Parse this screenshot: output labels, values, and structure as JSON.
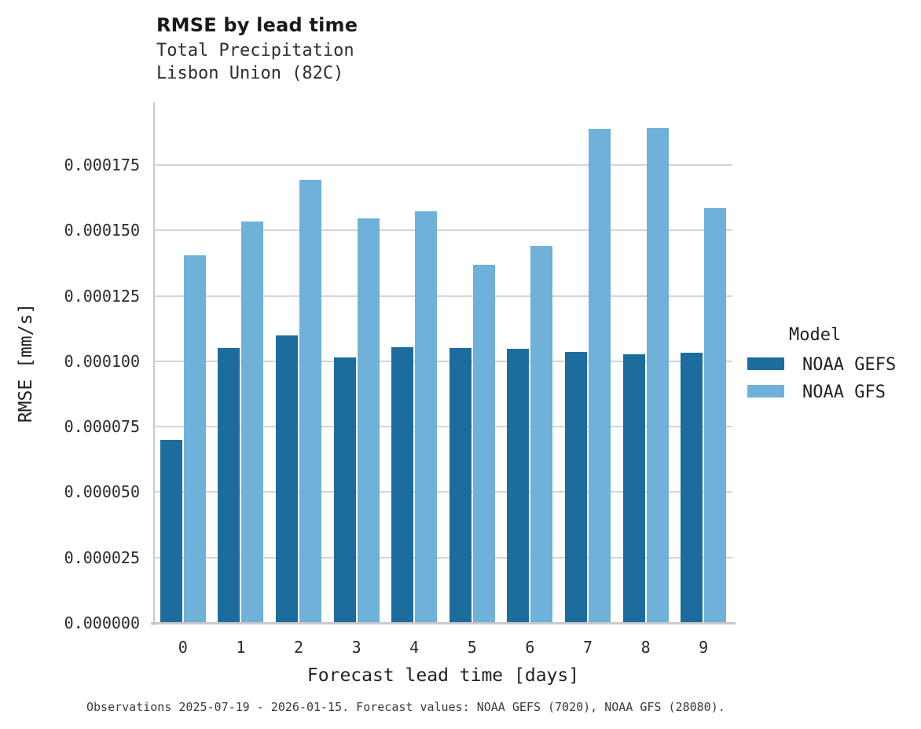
{
  "header": {
    "title": "RMSE by lead time",
    "subtitle_line1": "Total Precipitation",
    "subtitle_line2": "Lisbon Union (82C)"
  },
  "legend": {
    "title": "Model",
    "items": [
      {
        "label": "NOAA GEFS",
        "color": "#1c6d9d"
      },
      {
        "label": "NOAA GFS",
        "color": "#6fb1d8"
      }
    ]
  },
  "footer": {
    "note": "Observations 2025-07-19 - 2026-01-15. Forecast values: NOAA GEFS (7020), NOAA GFS (28080)."
  },
  "colors": {
    "gefs_bar": "#1c6d9d",
    "gfs_bar": "#6fb1d8",
    "gridline": "#d5d5d5",
    "axis": "#c9c9c9"
  },
  "chart_data": {
    "type": "bar",
    "title": "RMSE by lead time",
    "subtitle": [
      "Total Precipitation",
      "Lisbon Union (82C)"
    ],
    "xlabel": "Forecast lead time [days]",
    "ylabel": "RMSE [mm/s]",
    "categories": [
      "0",
      "1",
      "2",
      "3",
      "4",
      "5",
      "6",
      "7",
      "8",
      "9"
    ],
    "series": [
      {
        "name": "NOAA GEFS",
        "color": "#1c6d9d",
        "values": [
          7e-05,
          0.000105,
          0.00011,
          0.0001015,
          0.0001055,
          0.000105,
          0.0001048,
          0.0001037,
          0.0001028,
          0.0001034
        ]
      },
      {
        "name": "NOAA GFS",
        "color": "#6fb1d8",
        "values": [
          0.0001405,
          0.0001535,
          0.0001692,
          0.0001545,
          0.0001572,
          0.000137,
          0.000144,
          0.0001887,
          0.0001892,
          0.0001585
        ]
      }
    ],
    "ylim": [
      0,
      0.000199
    ],
    "yticks": [
      0.0,
      2.5e-05,
      5e-05,
      7.5e-05,
      0.0001,
      0.000125,
      0.00015,
      0.000175
    ],
    "ytick_labels": [
      "0.000000",
      "0.000025",
      "0.000050",
      "0.000075",
      "0.000100",
      "0.000125",
      "0.000150",
      "0.000175"
    ],
    "grid": true,
    "legend_position": "right",
    "legend_title": "Model"
  }
}
